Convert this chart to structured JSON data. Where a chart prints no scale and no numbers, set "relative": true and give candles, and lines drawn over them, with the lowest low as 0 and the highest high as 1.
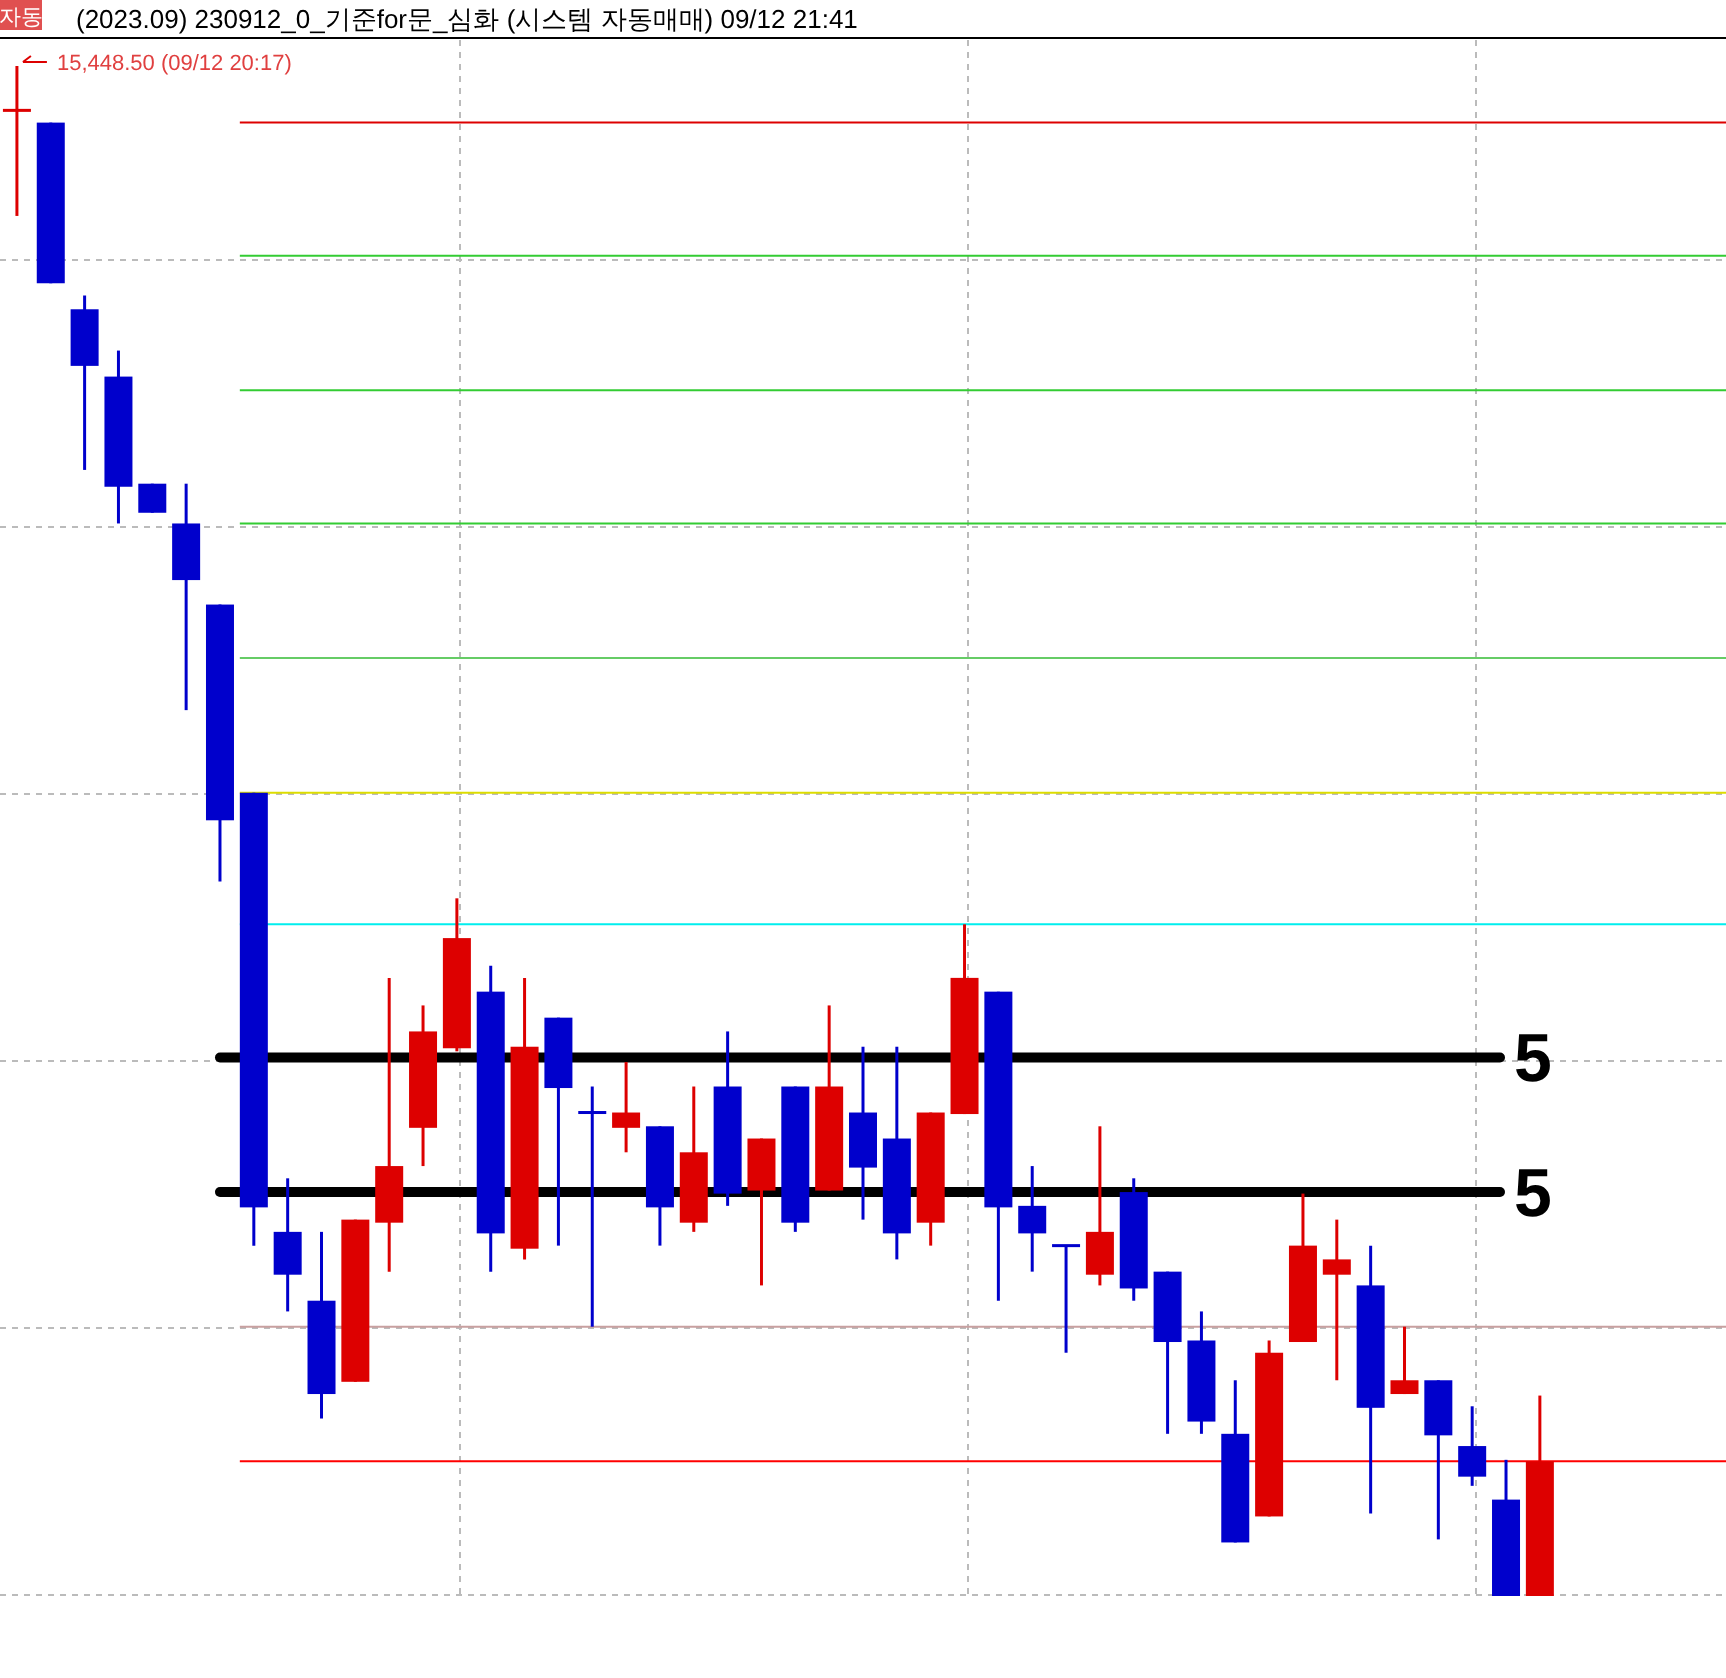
{
  "chart_data": {
    "type": "candlestick",
    "title": "(2023.09) 230912_0_기준for문_심화 (시스템 자동매매) 09/12 21:41",
    "relative": true,
    "grid": true,
    "categories": [
      null,
      null,
      null,
      null,
      null,
      null,
      null,
      null,
      null,
      null,
      null,
      null,
      null,
      null,
      null,
      null,
      null,
      null,
      null,
      null,
      null,
      null,
      null,
      null,
      null,
      null,
      null,
      null,
      null,
      null,
      null,
      null,
      null,
      null,
      null,
      null,
      null,
      null,
      null,
      null,
      null,
      null,
      null,
      null,
      null,
      null
    ],
    "ohlc": [
      [
        0.971,
        1,
        0.902,
        0.971
      ],
      [
        0.963,
        0.963,
        0.858,
        0.858
      ],
      [
        0.841,
        0.85,
        0.736,
        0.804
      ],
      [
        0.797,
        0.814,
        0.701,
        0.725
      ],
      [
        0.727,
        0.727,
        0.708,
        0.708
      ],
      [
        0.701,
        0.727,
        0.579,
        0.664
      ],
      [
        0.648,
        0.648,
        0.467,
        0.507
      ],
      [
        0.525,
        0.525,
        0.229,
        0.254
      ],
      [
        0.238,
        0.273,
        0.186,
        0.21
      ],
      [
        0.193,
        0.238,
        0.116,
        0.132
      ],
      [
        0.14,
        0.246,
        0.14,
        0.246
      ],
      [
        0.244,
        0.404,
        0.212,
        0.281
      ],
      [
        0.306,
        0.386,
        0.281,
        0.369
      ],
      [
        0.358,
        0.456,
        0.356,
        0.43
      ],
      [
        0.395,
        0.412,
        0.212,
        0.237
      ],
      [
        0.227,
        0.404,
        0.22,
        0.359
      ],
      [
        0.378,
        0.378,
        0.229,
        0.332
      ],
      [
        0.316,
        0.333,
        0.176,
        0.316
      ],
      [
        0.306,
        0.349,
        0.29,
        0.316
      ],
      [
        0.307,
        0.307,
        0.229,
        0.254
      ],
      [
        0.244,
        0.333,
        0.238,
        0.29
      ],
      [
        0.333,
        0.369,
        0.255,
        0.263
      ],
      [
        0.265,
        0.299,
        0.203,
        0.299
      ],
      [
        0.333,
        0.333,
        0.238,
        0.244
      ],
      [
        0.265,
        0.386,
        0.265,
        0.333
      ],
      [
        0.316,
        0.359,
        0.246,
        0.28
      ],
      [
        0.299,
        0.359,
        0.22,
        0.237
      ],
      [
        0.244,
        0.316,
        0.229,
        0.316
      ],
      [
        0.315,
        0.439,
        0.315,
        0.404
      ],
      [
        0.395,
        0.395,
        0.193,
        0.254
      ],
      [
        0.255,
        0.281,
        0.212,
        0.237
      ],
      [
        0.229,
        0.229,
        0.159,
        0.229
      ],
      [
        0.21,
        0.307,
        0.203,
        0.238
      ],
      [
        0.264,
        0.273,
        0.193,
        0.201
      ],
      [
        0.212,
        0.212,
        0.106,
        0.166
      ],
      [
        0.167,
        0.186,
        0.106,
        0.114
      ],
      [
        0.106,
        0.141,
        0.035,
        0.035
      ],
      [
        0.052,
        0.167,
        0.052,
        0.159
      ],
      [
        0.166,
        0.263,
        0.166,
        0.229
      ],
      [
        0.21,
        0.246,
        0.141,
        0.22
      ],
      [
        0.203,
        0.229,
        0.054,
        0.123
      ],
      [
        0.132,
        0.176,
        0.132,
        0.141
      ],
      [
        0.141,
        0.141,
        0.037,
        0.105
      ],
      [
        0.098,
        0.124,
        0.072,
        0.078
      ],
      [
        0.063,
        0.089,
        0,
        0
      ],
      [
        0,
        0.131,
        0,
        0.088
      ]
    ],
    "colors": [
      "#dd0000",
      "#0000cc",
      "#0000cc",
      "#0000cc",
      "#0000cc",
      "#0000cc",
      "#0000cc",
      "#0000cc",
      "#0000cc",
      "#0000cc",
      "#dd0000",
      "#dd0000",
      "#dd0000",
      "#dd0000",
      "#0000cc",
      "#dd0000",
      "#0000cc",
      "#0000cc",
      "#dd0000",
      "#0000cc",
      "#dd0000",
      "#0000cc",
      "#dd0000",
      "#0000cc",
      "#dd0000",
      "#0000cc",
      "#0000cc",
      "#dd0000",
      "#dd0000",
      "#0000cc",
      "#0000cc",
      "#0000cc",
      "#dd0000",
      "#0000cc",
      "#0000cc",
      "#0000cc",
      "#0000cc",
      "#dd0000",
      "#dd0000",
      "#dd0000",
      "#0000cc",
      "#dd0000",
      "#0000cc",
      "#0000cc",
      "#0000cc",
      "#dd0000"
    ],
    "ref_lines": [
      {
        "axis": "y",
        "value": 0.963,
        "color": "#dd0000"
      },
      {
        "axis": "y",
        "value": 0.876,
        "color": "#33cc33"
      },
      {
        "axis": "y",
        "value": 0.788,
        "color": "#33cc33"
      },
      {
        "axis": "y",
        "value": 0.701,
        "color": "#33cc33"
      },
      {
        "axis": "y",
        "value": 0.613,
        "color": "#66cc66"
      },
      {
        "axis": "y",
        "value": 0.525,
        "color": "#dddd00"
      },
      {
        "axis": "y",
        "value": 0.439,
        "color": "#00eeee"
      },
      {
        "axis": "y",
        "value": 0.352,
        "color": "#000000"
      },
      {
        "axis": "y",
        "value": 0.264,
        "color": "#000000"
      },
      {
        "axis": "y",
        "value": 0.176,
        "color": "#c8a0a0"
      },
      {
        "axis": "y",
        "value": 0.088,
        "color": "#ff0000"
      }
    ],
    "annotations": [
      "자동",
      "15,448.50 (09/12 20:17)",
      "5",
      "5"
    ]
  }
}
